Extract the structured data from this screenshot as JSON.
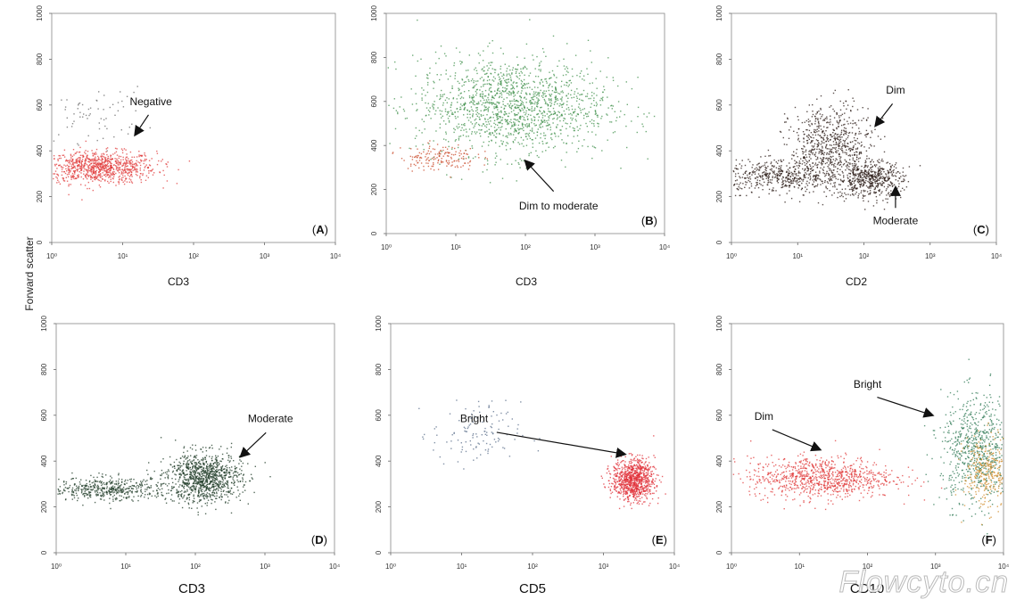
{
  "figure": {
    "y_axis_label": "Forward scatter",
    "watermark": "Flowcyto.cn"
  },
  "chart_data": [
    {
      "type": "scatter",
      "panel": "A",
      "xlabel": "CD3",
      "ylabel": "Forward scatter",
      "xscale": "log",
      "xlim": [
        1,
        10000
      ],
      "ylim": [
        0,
        1000
      ],
      "x_ticks": [
        "10⁰",
        "10¹",
        "10²",
        "10³",
        "10⁴"
      ],
      "y_ticks": [
        "0",
        "200",
        "400",
        "600",
        "800",
        "1000"
      ],
      "populations": [
        {
          "color": "#e03a3a",
          "x_range": [
            1,
            20
          ],
          "y_center": 330,
          "y_spread": 35,
          "density": 900
        },
        {
          "color": "#666666",
          "x_range": [
            1,
            15
          ],
          "y_center": 560,
          "y_spread": 60,
          "density": 70
        }
      ],
      "annotations": [
        {
          "text": "Negative",
          "text_pos": [
            25,
            600
          ],
          "arrow_to": [
            15,
            470
          ]
        }
      ]
    },
    {
      "type": "scatter",
      "panel": "B",
      "xlabel": "CD3",
      "ylabel": "",
      "xscale": "log",
      "xlim": [
        1,
        10000
      ],
      "ylim": [
        0,
        1000
      ],
      "x_ticks": [
        "10⁰",
        "10¹",
        "10²",
        "10³",
        "10⁴"
      ],
      "y_ticks": [
        "0",
        "200",
        "400",
        "600",
        "800",
        "1000"
      ],
      "populations": [
        {
          "color": "#3f8f4a",
          "x_range": [
            5,
            800
          ],
          "y_center": 580,
          "y_spread": 110,
          "density": 1500
        },
        {
          "color": "#c94a2a",
          "x_range": [
            2,
            15
          ],
          "y_center": 350,
          "y_spread": 30,
          "density": 160
        }
      ],
      "annotations": [
        {
          "text": "Dim to moderate",
          "text_pos": [
            300,
            110
          ],
          "arrow_to": [
            100,
            330
          ]
        }
      ]
    },
    {
      "type": "scatter",
      "panel": "C",
      "xlabel": "CD2",
      "ylabel": "",
      "xscale": "log",
      "xlim": [
        1,
        10000
      ],
      "ylim": [
        0,
        1000
      ],
      "x_ticks": [
        "10⁰",
        "10¹",
        "10²",
        "10³",
        "10⁴"
      ],
      "y_ticks": [
        "0",
        "200",
        "400",
        "600",
        "800",
        "1000"
      ],
      "populations": [
        {
          "color": "#2a1a14",
          "x_range": [
            1,
            30
          ],
          "y_center": 290,
          "y_spread": 35,
          "density": 500
        },
        {
          "color": "#2a1a14",
          "x_range": [
            10,
            100
          ],
          "y_center": 420,
          "y_spread": 90,
          "density": 700
        },
        {
          "color": "#2a1a14",
          "x_range": [
            50,
            300
          ],
          "y_center": 280,
          "y_spread": 40,
          "density": 500
        }
      ],
      "annotations": [
        {
          "text": "Dim",
          "text_pos": [
            300,
            650
          ],
          "arrow_to": [
            150,
            510
          ]
        },
        {
          "text": "Moderate",
          "text_pos": [
            300,
            80
          ],
          "arrow_to": [
            300,
            240
          ]
        }
      ]
    },
    {
      "type": "scatter",
      "panel": "D",
      "xlabel": "CD3",
      "ylabel": "",
      "xscale": "log",
      "xlim": [
        1,
        10000
      ],
      "ylim": [
        0,
        1000
      ],
      "x_ticks": [
        "10⁰",
        "10¹",
        "10²",
        "10³",
        "10⁴"
      ],
      "y_ticks": [
        "0",
        "200",
        "400",
        "600",
        "800",
        "1000"
      ],
      "populations": [
        {
          "color": "#1e3a26",
          "x_range": [
            1,
            30
          ],
          "y_center": 280,
          "y_spread": 25,
          "density": 500
        },
        {
          "color": "#1e3a26",
          "x_range": [
            50,
            350
          ],
          "y_center": 330,
          "y_spread": 55,
          "density": 1000
        }
      ],
      "annotations": [
        {
          "text": "Moderate",
          "text_pos": [
            1200,
            570
          ],
          "arrow_to": [
            450,
            420
          ]
        }
      ]
    },
    {
      "type": "scatter",
      "panel": "E",
      "xlabel": "CD5",
      "ylabel": "",
      "xscale": "log",
      "xlim": [
        1,
        10000
      ],
      "ylim": [
        0,
        1000
      ],
      "x_ticks": [
        "10⁰",
        "10¹",
        "10²",
        "10³",
        "10⁴"
      ],
      "y_ticks": [
        "0",
        "200",
        "400",
        "600",
        "800",
        "1000"
      ],
      "populations": [
        {
          "color": "#e0323a",
          "x_range": [
            1500,
            4500
          ],
          "y_center": 320,
          "y_spread": 45,
          "density": 900
        },
        {
          "color": "#5a6e8a",
          "x_range": [
            5,
            50
          ],
          "y_center": 520,
          "y_spread": 70,
          "density": 120
        }
      ],
      "annotations": [
        {
          "text": "Bright",
          "text_pos": [
            15,
            570
          ],
          "arrow_to": [
            2000,
            430
          ]
        }
      ]
    },
    {
      "type": "scatter",
      "panel": "F",
      "xlabel": "CD10",
      "ylabel": "",
      "xscale": "log",
      "xlim": [
        1,
        10000
      ],
      "ylim": [
        0,
        1000
      ],
      "x_ticks": [
        "10⁰",
        "10¹",
        "10²",
        "10³",
        "10⁴"
      ],
      "y_ticks": [
        "0",
        "200",
        "400",
        "600",
        "800",
        "1000"
      ],
      "populations": [
        {
          "color": "#e03a3a",
          "x_range": [
            3,
            150
          ],
          "y_center": 330,
          "y_spread": 45,
          "density": 900
        },
        {
          "color": "#2f7a55",
          "x_range": [
            1500,
            10000
          ],
          "y_center": 450,
          "y_spread": 120,
          "density": 700
        },
        {
          "color": "#d08b2a",
          "x_range": [
            3000,
            10000
          ],
          "y_center": 350,
          "y_spread": 80,
          "density": 300
        }
      ],
      "annotations": [
        {
          "text": "Dim",
          "text_pos": [
            3,
            580
          ],
          "arrow_to": [
            20,
            450
          ]
        },
        {
          "text": "Bright",
          "text_pos": [
            100,
            720
          ],
          "arrow_to": [
            900,
            600
          ]
        }
      ]
    }
  ]
}
